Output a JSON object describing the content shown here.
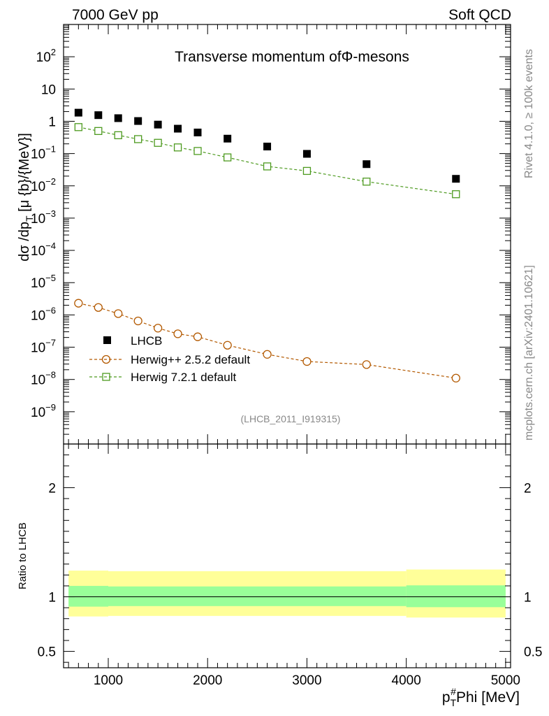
{
  "header": {
    "left_label": "7000 GeV pp",
    "right_label": "Soft QCD"
  },
  "side_labels": {
    "rivet": "Rivet 4.1.0, ≥ 100k events",
    "mcplots": "mcplots.cern.ch [arXiv:2401.10621]"
  },
  "chart_data": {
    "type": "scatter",
    "title": "Transverse momentum ofΦ-mesons",
    "watermark": "(LHCB_2011_I919315)",
    "ylabel": "dσ /dp_T [μ {b}/{MeV}]",
    "ylabel_parts": {
      "main": "dσ /dp",
      "sub": "T",
      "tail": " [μ {b}/{MeV}]"
    },
    "xlabel": "p_T^#Phi [MeV]",
    "xlabel_parts": {
      "main": "p",
      "sub": "T",
      "sup": "#",
      "tail": "Phi [MeV]"
    },
    "ratio_ylabel": "Ratio to LHCB",
    "xlim": [
      550,
      5050
    ],
    "ylim": [
      1e-10,
      1000
    ],
    "ratio_ylim": [
      0.35,
      2.4
    ],
    "x_ticks": [
      1000,
      2000,
      3000,
      4000,
      5000
    ],
    "x_tick_labels": [
      "1000",
      "2000",
      "3000",
      "4000",
      "5000"
    ],
    "y_ticks": [
      {
        "exp": -9,
        "label": "10",
        "sup": "−9"
      },
      {
        "exp": -8,
        "label": "10",
        "sup": "−8"
      },
      {
        "exp": -7,
        "label": "10",
        "sup": "−7"
      },
      {
        "exp": -6,
        "label": "10",
        "sup": "−6"
      },
      {
        "exp": -5,
        "label": "10",
        "sup": "−5"
      },
      {
        "exp": -4,
        "label": "10",
        "sup": "−4"
      },
      {
        "exp": -3,
        "label": "10",
        "sup": "−3"
      },
      {
        "exp": -2,
        "label": "10",
        "sup": "−2"
      },
      {
        "exp": -1,
        "label": "10",
        "sup": "−1"
      },
      {
        "exp": 0,
        "label": "1",
        "sup": ""
      },
      {
        "exp": 1,
        "label": "10",
        "sup": ""
      },
      {
        "exp": 2,
        "label": "10",
        "sup": "2"
      }
    ],
    "ratio_ticks": [
      {
        "value": 0.5,
        "label": "0.5"
      },
      {
        "value": 1,
        "label": "1"
      },
      {
        "value": 2,
        "label": "2"
      }
    ],
    "bins": [
      600,
      800,
      1000,
      1200,
      1400,
      1600,
      1800,
      2000,
      2400,
      2800,
      3200,
      4000,
      5000
    ],
    "x": [
      700,
      900,
      1100,
      1300,
      1500,
      1700,
      1900,
      2200,
      2600,
      3000,
      3600,
      4500
    ],
    "series": [
      {
        "name": "LHCB",
        "marker": "filled-square",
        "color": "#000000",
        "values": [
          1.85,
          1.55,
          1.25,
          1.02,
          0.79,
          0.59,
          0.45,
          0.29,
          0.165,
          0.098,
          0.047,
          0.0165
        ]
      },
      {
        "name": "Herwig++ 2.5.2 default",
        "marker": "open-circle",
        "color": "#b35900",
        "values": [
          2.3e-06,
          1.7e-06,
          1.1e-06,
          6.5e-07,
          3.9e-07,
          2.6e-07,
          2.1e-07,
          1.15e-07,
          6e-08,
          3.6e-08,
          2.9e-08,
          1.1e-08
        ]
      },
      {
        "name": "Herwig 7.2.1 default",
        "marker": "open-square",
        "color": "#4d9a1f",
        "values": [
          0.66,
          0.5,
          0.37,
          0.28,
          0.215,
          0.155,
          0.12,
          0.076,
          0.04,
          0.029,
          0.0135,
          0.0055
        ]
      }
    ],
    "ratio_band_inner": [
      {
        "x0": 600,
        "x1": 1000,
        "lo": 0.91,
        "hi": 1.1
      },
      {
        "x0": 1000,
        "x1": 4000,
        "lo": 0.915,
        "hi": 1.095
      },
      {
        "x0": 4000,
        "x1": 5000,
        "lo": 0.905,
        "hi": 1.105
      }
    ],
    "ratio_band_outer": [
      {
        "x0": 600,
        "x1": 1000,
        "lo": 0.82,
        "hi": 1.24
      },
      {
        "x0": 1000,
        "x1": 4000,
        "lo": 0.825,
        "hi": 1.235
      },
      {
        "x0": 4000,
        "x1": 5000,
        "lo": 0.81,
        "hi": 1.25
      }
    ],
    "band_colors": {
      "inner": "#99ff99",
      "outer": "#ffff99"
    },
    "legend_position": "lower-left"
  }
}
